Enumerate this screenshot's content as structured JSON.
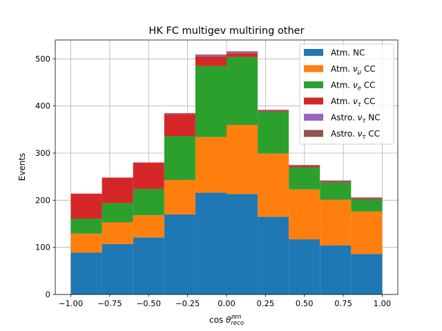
{
  "chart_data": {
    "type": "bar",
    "stacked": true,
    "histogram": true,
    "title": "HK FC multigev multiring other",
    "xlabel_main": "cos ",
    "xlabel_theta": "θ",
    "xlabel_sup": "zen",
    "xlabel_sub": "reco",
    "ylabel": "Events",
    "bin_edges": [
      -1.0,
      -0.8,
      -0.6,
      -0.4,
      -0.2,
      0.0,
      0.2,
      0.4,
      0.6,
      0.8,
      1.0
    ],
    "xlim": [
      -1.1,
      1.1
    ],
    "ylim": [
      0,
      540
    ],
    "xticks": [
      -1.0,
      -0.75,
      -0.5,
      -0.25,
      0.0,
      0.25,
      0.5,
      0.75,
      1.0
    ],
    "xtick_labels": [
      "−1.00",
      "−0.75",
      "−0.50",
      "−0.25",
      "0.00",
      "0.25",
      "0.50",
      "0.75",
      "1.00"
    ],
    "yticks": [
      0,
      100,
      200,
      300,
      400,
      500
    ],
    "ytick_labels": [
      "0",
      "100",
      "200",
      "300",
      "400",
      "500"
    ],
    "grid": true,
    "legend_position": "top-right",
    "series": [
      {
        "name": "Atm. NC",
        "name_main": "Atm. NC",
        "name_nu": "",
        "name_sub": "",
        "name_tail": "",
        "color": "#1f77b4",
        "values": [
          89,
          107,
          121,
          170,
          216,
          213,
          165,
          117,
          104,
          86
        ]
      },
      {
        "name": "Atm. νμ CC",
        "name_main": "Atm. ",
        "name_nu": "ν",
        "name_sub": "μ",
        "name_tail": " CC",
        "color": "#ff7f0e",
        "values": [
          40,
          46,
          47,
          73,
          118,
          147,
          134,
          106,
          97,
          90
        ]
      },
      {
        "name": "Atm. νe CC",
        "name_main": "Atm. ",
        "name_nu": "ν",
        "name_sub": "e",
        "name_tail": " CC",
        "color": "#2ca02c",
        "values": [
          32,
          41,
          56,
          93,
          151,
          144,
          89,
          47,
          37,
          26
        ]
      },
      {
        "name": "Atm. ντ CC",
        "name_main": "Atm. ",
        "name_nu": "ν",
        "name_sub": "τ",
        "name_tail": " CC",
        "color": "#d62728",
        "values": [
          53,
          54,
          56,
          47,
          20,
          8,
          2,
          3,
          2,
          2
        ]
      },
      {
        "name": "Astro. ντ NC",
        "name_main": "Astro. ",
        "name_nu": "ν",
        "name_sub": "τ",
        "name_tail": " NC",
        "color": "#9467bd",
        "values": [
          0,
          0,
          0,
          1,
          2,
          2,
          1,
          1,
          1,
          1
        ]
      },
      {
        "name": "Astro. ντ CC",
        "name_main": "Astro. ",
        "name_nu": "ν",
        "name_sub": "τ",
        "name_tail": " CC",
        "color": "#8c564b",
        "values": [
          0,
          0,
          0,
          1,
          2,
          2,
          1,
          1,
          1,
          1
        ]
      }
    ]
  }
}
